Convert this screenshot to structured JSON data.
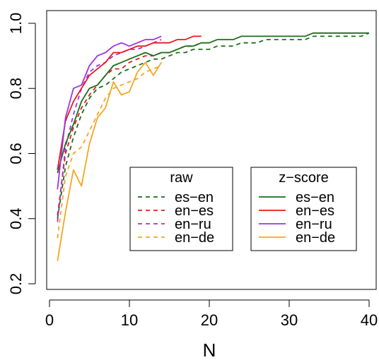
{
  "chart_data": {
    "type": "line",
    "xlabel": "N",
    "ylabel": "",
    "xlim": [
      0,
      40
    ],
    "ylim": [
      0.2,
      1.0
    ],
    "x_ticks": [
      "0",
      "10",
      "20",
      "30",
      "40"
    ],
    "y_ticks": [
      "0.2",
      "0.4",
      "0.6",
      "0.8",
      "1.0"
    ],
    "grid": false,
    "legends": [
      {
        "title": "raw",
        "line_style": "dashed",
        "entries": [
          "es−en",
          "en−es",
          "en−ru",
          "en−de"
        ]
      },
      {
        "title": "z−score",
        "line_style": "solid",
        "entries": [
          "es−en",
          "en−es",
          "en−ru",
          "en−de"
        ]
      }
    ],
    "series": [
      {
        "group": "z-score",
        "pair": "es-en",
        "color": "#1a6e1a",
        "dashed": false,
        "x": [
          1,
          2,
          3,
          4,
          5,
          6,
          7,
          8,
          9,
          10,
          11,
          12,
          13,
          14,
          15,
          16,
          17,
          18,
          19,
          20,
          21,
          22,
          23,
          24,
          25,
          26,
          27,
          28,
          29,
          30,
          31,
          32,
          33,
          34,
          35,
          36,
          37,
          38,
          39,
          40
        ],
        "y": [
          0.54,
          0.63,
          0.69,
          0.76,
          0.8,
          0.81,
          0.84,
          0.87,
          0.88,
          0.89,
          0.9,
          0.91,
          0.9,
          0.91,
          0.91,
          0.92,
          0.93,
          0.93,
          0.94,
          0.94,
          0.95,
          0.95,
          0.95,
          0.96,
          0.96,
          0.96,
          0.96,
          0.96,
          0.96,
          0.96,
          0.96,
          0.96,
          0.97,
          0.97,
          0.97,
          0.97,
          0.97,
          0.97,
          0.97,
          0.97
        ]
      },
      {
        "group": "z-score",
        "pair": "en-es",
        "color": "#e41a1c",
        "dashed": false,
        "x": [
          1,
          2,
          3,
          4,
          5,
          6,
          7,
          8,
          9,
          10,
          11,
          12,
          13,
          14,
          15,
          16,
          17,
          18,
          19
        ],
        "y": [
          0.55,
          0.7,
          0.76,
          0.8,
          0.84,
          0.86,
          0.88,
          0.91,
          0.91,
          0.92,
          0.93,
          0.93,
          0.94,
          0.94,
          0.94,
          0.95,
          0.95,
          0.96,
          0.96
        ]
      },
      {
        "group": "z-score",
        "pair": "en-ru",
        "color": "#a033e0",
        "dashed": false,
        "x": [
          1,
          2,
          3,
          4,
          5,
          6,
          7,
          8,
          9,
          10,
          11,
          12,
          13,
          14
        ],
        "y": [
          0.49,
          0.71,
          0.8,
          0.81,
          0.87,
          0.9,
          0.91,
          0.93,
          0.94,
          0.93,
          0.94,
          0.95,
          0.95,
          0.96
        ]
      },
      {
        "group": "z-score",
        "pair": "en-de",
        "color": "#f5a623",
        "dashed": false,
        "x": [
          1,
          2,
          3,
          4,
          5,
          6,
          7,
          8,
          9,
          10,
          11,
          12,
          13,
          14
        ],
        "y": [
          0.27,
          0.42,
          0.55,
          0.5,
          0.63,
          0.71,
          0.74,
          0.82,
          0.78,
          0.79,
          0.85,
          0.88,
          0.84,
          0.88
        ]
      },
      {
        "group": "raw",
        "pair": "es-en",
        "color": "#1a6e1a",
        "dashed": true,
        "x": [
          1,
          2,
          3,
          4,
          5,
          6,
          7,
          8,
          9,
          10,
          11,
          12,
          13,
          14,
          15,
          16,
          17,
          18,
          19,
          20,
          21,
          22,
          23,
          24,
          25,
          26,
          27,
          28,
          29,
          30,
          31,
          32,
          33,
          34,
          35,
          36,
          37,
          38,
          39,
          40
        ],
        "y": [
          0.4,
          0.56,
          0.65,
          0.72,
          0.77,
          0.8,
          0.81,
          0.83,
          0.85,
          0.86,
          0.87,
          0.88,
          0.89,
          0.89,
          0.9,
          0.91,
          0.91,
          0.92,
          0.92,
          0.92,
          0.93,
          0.93,
          0.93,
          0.94,
          0.94,
          0.94,
          0.95,
          0.95,
          0.95,
          0.95,
          0.95,
          0.95,
          0.96,
          0.96,
          0.96,
          0.96,
          0.96,
          0.96,
          0.96,
          0.97
        ]
      },
      {
        "group": "raw",
        "pair": "en-es",
        "color": "#e41a1c",
        "dashed": true,
        "x": [
          1,
          2,
          3,
          4,
          5,
          6,
          7,
          8,
          9,
          10,
          11,
          12,
          13,
          14,
          15,
          16,
          17,
          18,
          19
        ],
        "y": [
          0.41,
          0.6,
          0.68,
          0.74,
          0.78,
          0.81,
          0.84,
          0.86,
          0.86,
          0.88,
          0.89,
          0.9,
          0.9,
          0.91,
          0.91,
          0.92,
          0.93,
          0.93,
          0.94
        ]
      },
      {
        "group": "raw",
        "pair": "en-ru",
        "color": "#a033e0",
        "dashed": true,
        "x": [
          1,
          2,
          3,
          4,
          5,
          6,
          7,
          8,
          9,
          10,
          11,
          12,
          13,
          14
        ],
        "y": [
          0.39,
          0.62,
          0.72,
          0.8,
          0.85,
          0.87,
          0.88,
          0.9,
          0.91,
          0.92,
          0.92,
          0.93,
          0.94,
          0.95
        ]
      },
      {
        "group": "raw",
        "pair": "en-de",
        "color": "#f5a623",
        "dashed": true,
        "x": [
          1,
          2,
          3,
          4,
          5,
          6,
          7,
          8,
          9,
          10,
          11,
          12,
          13,
          14
        ],
        "y": [
          0.34,
          0.53,
          0.6,
          0.62,
          0.67,
          0.72,
          0.77,
          0.8,
          0.81,
          0.82,
          0.83,
          0.85,
          0.86,
          0.87
        ]
      }
    ]
  }
}
